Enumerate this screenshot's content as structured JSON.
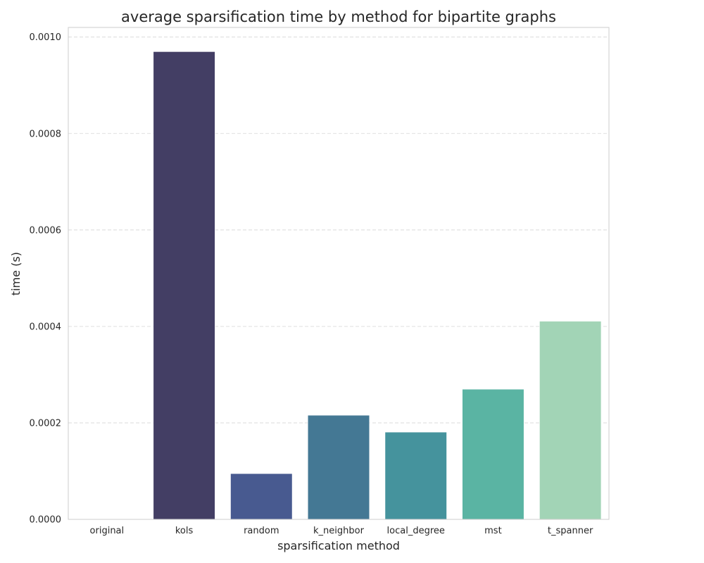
{
  "chart_data": {
    "type": "bar",
    "title": "average sparsification time by method for bipartite graphs",
    "xlabel": "sparsification method",
    "ylabel": "time (s)",
    "categories": [
      "original",
      "kols",
      "random",
      "k_neighbor",
      "local_degree",
      "mst",
      "t_spanner"
    ],
    "values": [
      0.0,
      0.00097,
      9.5e-05,
      0.000216,
      0.000181,
      0.00027,
      0.000411
    ],
    "colors": [
      "#3b2a4d",
      "#433e64",
      "#485a90",
      "#447894",
      "#45939d",
      "#5ab4a3",
      "#a2d4b6"
    ],
    "ylim": [
      0,
      0.00102
    ],
    "yticks": [
      {
        "value": 0,
        "label": "0.0000"
      },
      {
        "value": 0.0002,
        "label": "0.0002"
      },
      {
        "value": 0.0004,
        "label": "0.0004"
      },
      {
        "value": 0.0006,
        "label": "0.0006"
      },
      {
        "value": 0.0008,
        "label": "0.0008"
      },
      {
        "value": 0.001,
        "label": "0.0010"
      }
    ],
    "grid": "y-dashed",
    "legend": "none"
  }
}
